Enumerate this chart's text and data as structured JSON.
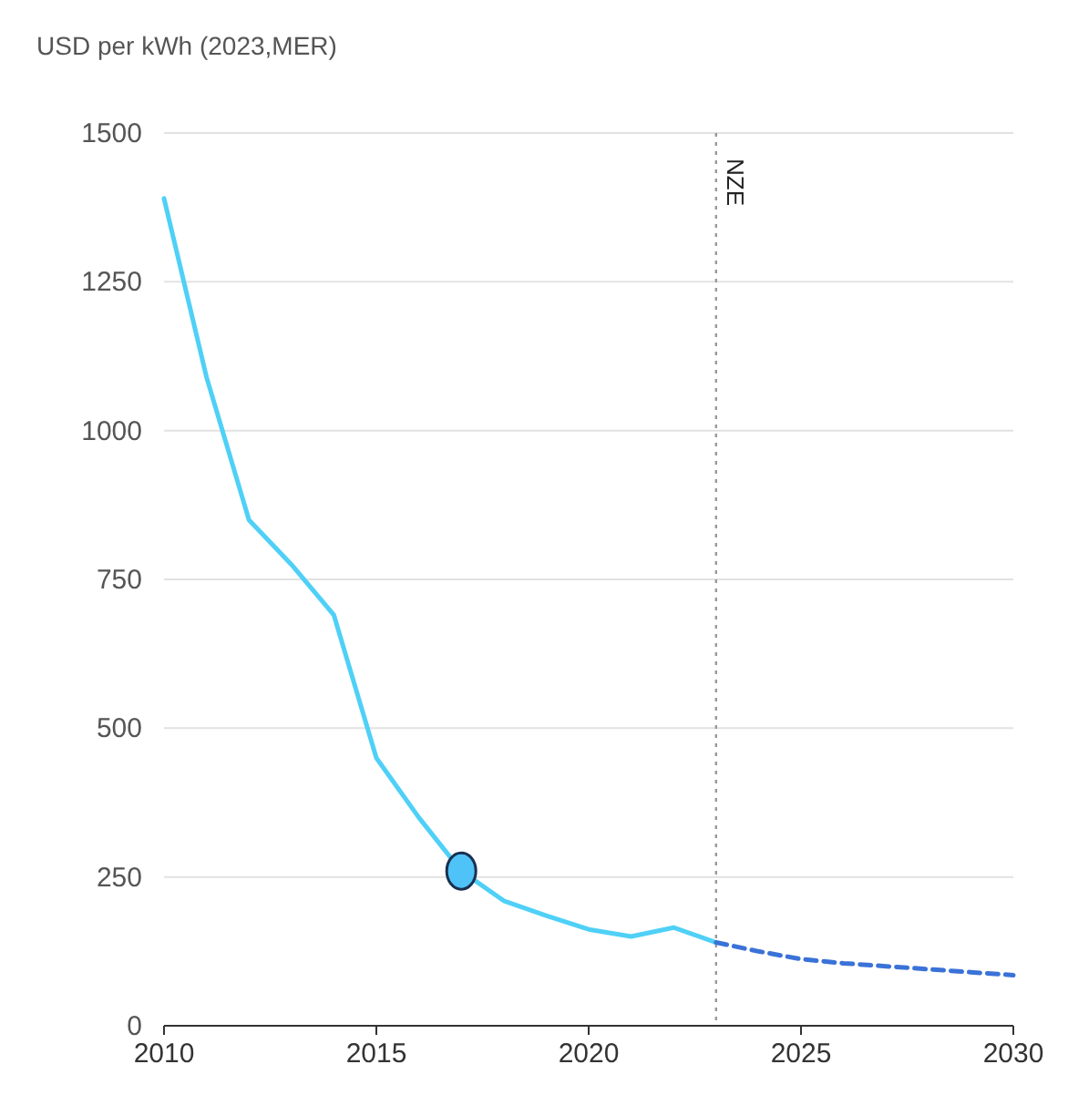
{
  "chart_data": {
    "type": "line",
    "ylabel": "USD per kWh (2023,MER)",
    "xlim": [
      2010,
      2030
    ],
    "xticks": [
      2010,
      2015,
      2020,
      2025,
      2030
    ],
    "ylim": [
      0,
      1500
    ],
    "yticks": [
      0,
      250,
      500,
      750,
      1000,
      1250,
      1500
    ],
    "grid": "y",
    "series": [
      {
        "color": "#4fd0f7",
        "line_style": "solid",
        "x": [
          2010,
          2011,
          2012,
          2013,
          2014,
          2015,
          2016,
          2017,
          2018,
          2019,
          2020,
          2021,
          2022,
          2023
        ],
        "values": [
          1390,
          1090,
          850,
          775,
          690,
          450,
          350,
          260,
          210,
          185,
          162,
          150,
          165,
          140
        ]
      },
      {
        "color": "#3a72d8",
        "line_style": "dashed",
        "x": [
          2023,
          2024,
          2025,
          2026,
          2027,
          2028,
          2029,
          2030
        ],
        "values": [
          140,
          125,
          112,
          105,
          100,
          95,
          90,
          85
        ]
      },
      {
        "type": "scatter",
        "marker": "circle",
        "color": "#4fc3f7",
        "x": [
          2017
        ],
        "values": [
          260
        ]
      }
    ],
    "ref_lines": [
      {
        "axis": "x",
        "value": 2023,
        "label": "NZE",
        "color": "#999999",
        "line_style": "dotted"
      }
    ]
  }
}
